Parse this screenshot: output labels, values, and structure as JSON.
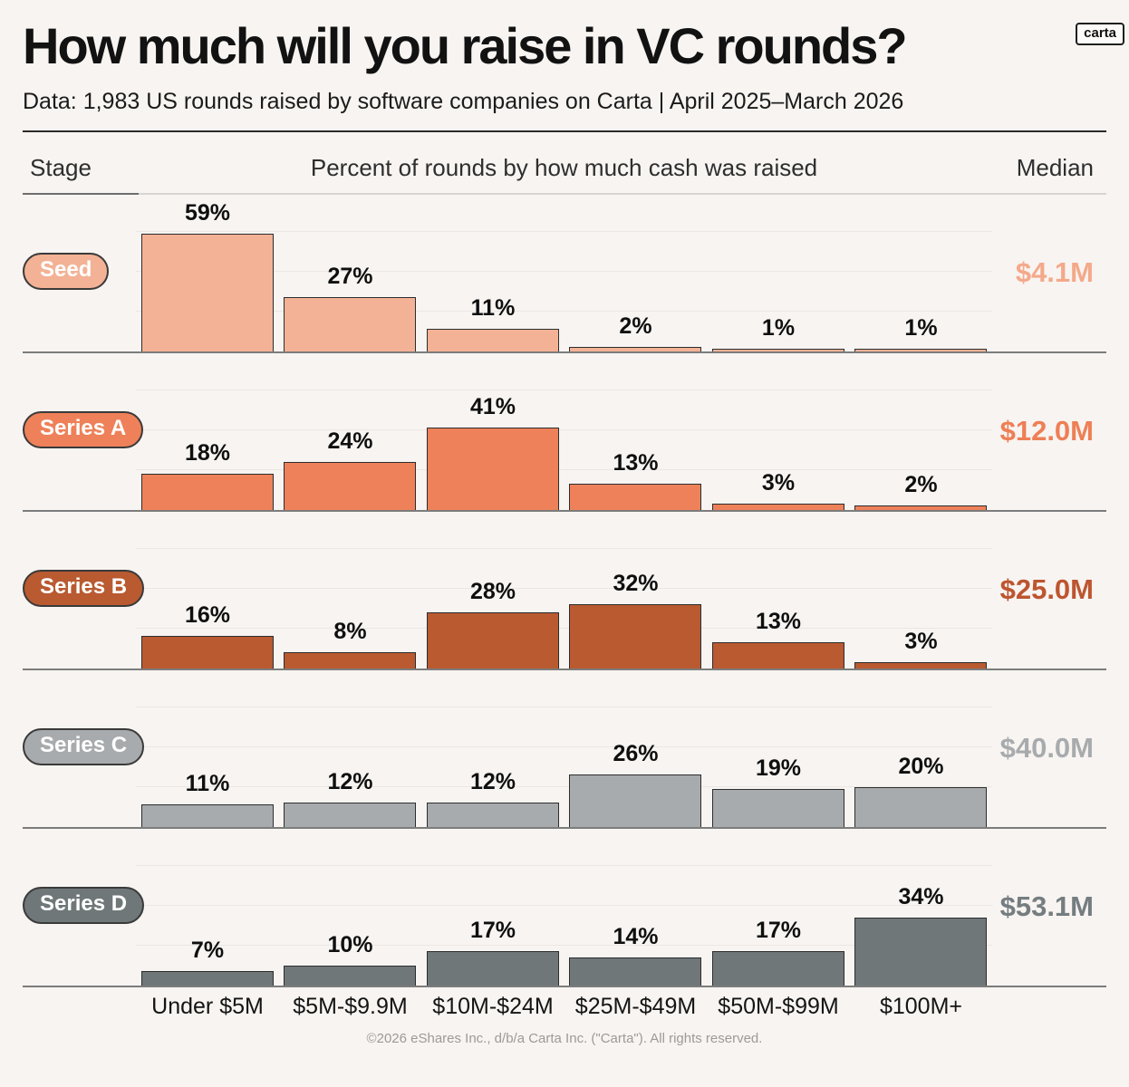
{
  "logo": "carta",
  "title": "How much will you raise in VC rounds?",
  "subtitle": "Data: 1,983 US rounds raised by software companies on Carta | April 2025–March 2026",
  "columns": {
    "stage": "Stage",
    "distribution": "Percent of rounds by how much cash was raised",
    "median": "Median"
  },
  "footer": "©2026 eShares Inc., d/b/a Carta Inc. (\"Carta\"). All rights reserved.",
  "background_color": "#F7F4F1",
  "chart_data": {
    "type": "bar",
    "title": "Percent of rounds by how much cash was raised",
    "unit": "%",
    "categories": [
      "Under $5M",
      "$5M-$9.9M",
      "$10M-$24M",
      "$25M-$49M",
      "$50M-$99M",
      "$100M+"
    ],
    "series": [
      {
        "stage": "Seed",
        "values": [
          59,
          27,
          11,
          2,
          1,
          1
        ],
        "median": "$4.1M",
        "bar_color": "#F3B295",
        "median_color": "#F4A98B"
      },
      {
        "stage": "Series A",
        "values": [
          18,
          24,
          41,
          13,
          3,
          2
        ],
        "median": "$12.0M",
        "bar_color": "#EE8159",
        "median_color": "#EE7F55"
      },
      {
        "stage": "Series B",
        "values": [
          16,
          8,
          28,
          32,
          13,
          3
        ],
        "median": "$25.0M",
        "bar_color": "#B95A31",
        "median_color": "#BD5530"
      },
      {
        "stage": "Series C",
        "values": [
          11,
          12,
          12,
          26,
          19,
          20
        ],
        "median": "$40.0M",
        "bar_color": "#A8ABAD",
        "median_color": "#A8ABAD"
      },
      {
        "stage": "Series D",
        "values": [
          7,
          10,
          17,
          14,
          17,
          34
        ],
        "median": "$53.1M",
        "bar_color": "#6F7779",
        "median_color": "#757D80"
      }
    ],
    "ylim": [
      0,
      65
    ],
    "grid": "faint horizontal gridlines per row",
    "legend_position": "none"
  }
}
